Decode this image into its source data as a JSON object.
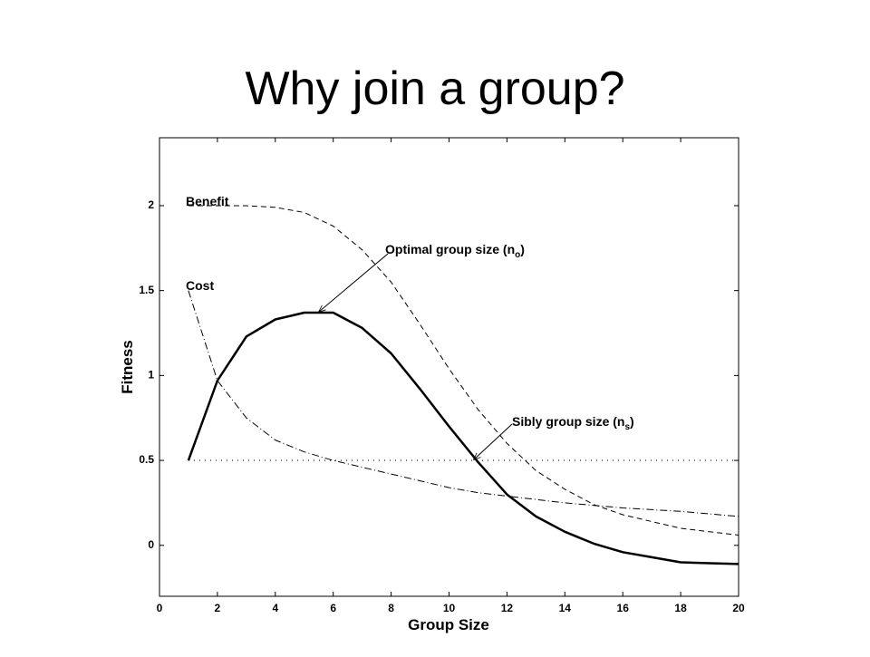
{
  "chart_data": {
    "type": "line",
    "title": "Why join a group?",
    "x_label": "Group Size",
    "y_label": "Fitness",
    "x": [
      1,
      2,
      3,
      4,
      5,
      6,
      7,
      8,
      9,
      10,
      11,
      12,
      13,
      14,
      15,
      16,
      17,
      18,
      19,
      20
    ],
    "series": [
      {
        "name": "Benefit",
        "color": "#000000",
        "style": "dashed",
        "width": 1,
        "values": [
          2.0,
          2.0,
          2.0,
          1.99,
          1.96,
          1.88,
          1.74,
          1.55,
          1.3,
          1.04,
          0.8,
          0.6,
          0.44,
          0.33,
          0.24,
          0.18,
          0.14,
          0.1,
          0.08,
          0.06
        ]
      },
      {
        "name": "Cost",
        "color": "#000000",
        "style": "dashdot",
        "width": 1,
        "values": [
          1.5,
          0.97,
          0.75,
          0.62,
          0.55,
          0.5,
          0.46,
          0.42,
          0.38,
          0.34,
          0.31,
          0.29,
          0.27,
          0.25,
          0.235,
          0.22,
          0.21,
          0.2,
          0.185,
          0.17
        ]
      },
      {
        "name": "Fitness",
        "color": "#000000",
        "style": "solid",
        "width": 2.5,
        "values": [
          0.5,
          0.97,
          1.23,
          1.33,
          1.37,
          1.37,
          1.28,
          1.13,
          0.92,
          0.7,
          0.49,
          0.3,
          0.17,
          0.08,
          0.01,
          -0.04,
          -0.07,
          -0.1,
          -0.105,
          -0.11
        ]
      }
    ],
    "hline": {
      "value": 0.5,
      "from": 1,
      "to": 20,
      "style": "dotted"
    },
    "annotations": [
      {
        "text": "Optimal group size (n",
        "sub": "o",
        "suffix": ")"
      },
      {
        "text": "Sibly group size (n",
        "sub": "s",
        "suffix": ")"
      }
    ],
    "xlim": [
      0,
      20
    ],
    "xticks": [
      0,
      2,
      4,
      6,
      8,
      10,
      12,
      14,
      16,
      18,
      20
    ],
    "ylim": [
      -0.3,
      2.4
    ],
    "yticks": [
      0,
      0.5,
      1,
      1.5,
      2
    ],
    "grid": false
  }
}
